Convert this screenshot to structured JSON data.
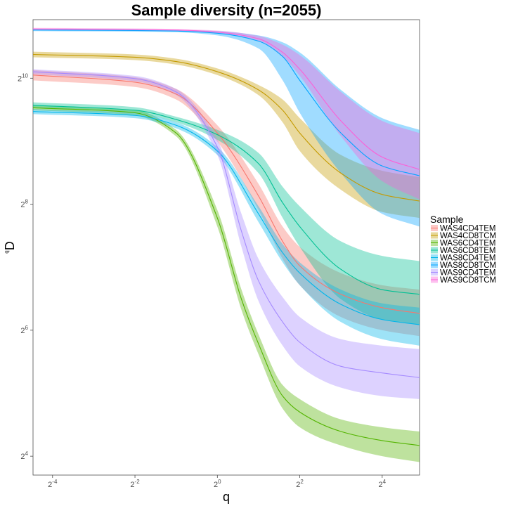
{
  "chart_data": {
    "type": "line",
    "title": "Sample diversity (n=2055)",
    "xlabel": "q",
    "ylabel_base": "D",
    "ylabel_superscript": "q",
    "x_scale": "log2",
    "y_scale": "log2",
    "xlim": [
      0.045,
      30
    ],
    "ylim": [
      13,
      1950
    ],
    "x_ticks": [
      {
        "base": "2",
        "exp": "-4",
        "value": 0.0625
      },
      {
        "base": "2",
        "exp": "-2",
        "value": 0.25
      },
      {
        "base": "2",
        "exp": "0",
        "value": 1
      },
      {
        "base": "2",
        "exp": "2",
        "value": 4
      },
      {
        "base": "2",
        "exp": "4",
        "value": 16
      }
    ],
    "y_ticks": [
      {
        "base": "2",
        "exp": "4",
        "value": 16
      },
      {
        "base": "2",
        "exp": "6",
        "value": 64
      },
      {
        "base": "2",
        "exp": "8",
        "value": 256
      },
      {
        "base": "2",
        "exp": "10",
        "value": 1024
      }
    ],
    "grid": false,
    "legend": {
      "title": "Sample",
      "position": "right"
    },
    "series": [
      {
        "name": "WAS4CD4TEM",
        "color": "#F8766D",
        "x": [
          0.045,
          0.25,
          0.5,
          1,
          2,
          3,
          4,
          8,
          16,
          30
        ],
        "y": [
          1060,
          980,
          860,
          560,
          280,
          170,
          130,
          95,
          82,
          77
        ],
        "y_lower": [
          1000,
          930,
          810,
          510,
          240,
          140,
          105,
          74,
          64,
          60
        ],
        "y_upper": [
          1120,
          1035,
          910,
          610,
          320,
          200,
          160,
          120,
          105,
          100
        ]
      },
      {
        "name": "WAS4CD8TCM",
        "color": "#C49A00",
        "x": [
          0.045,
          0.25,
          0.5,
          1,
          2,
          3,
          4,
          8,
          16,
          30
        ],
        "y": [
          1330,
          1290,
          1230,
          1100,
          900,
          720,
          560,
          360,
          285,
          265
        ],
        "y_lower": [
          1290,
          1250,
          1190,
          1060,
          850,
          630,
          460,
          300,
          235,
          220
        ],
        "y_upper": [
          1370,
          1330,
          1270,
          1140,
          950,
          810,
          660,
          440,
          370,
          345
        ]
      },
      {
        "name": "WAS6CD4TEM",
        "color": "#53B400",
        "x": [
          0.045,
          0.25,
          0.5,
          1,
          1.5,
          2,
          3,
          4,
          8,
          16,
          30
        ],
        "y": [
          740,
          700,
          560,
          220,
          90,
          55,
          31,
          26,
          21,
          19,
          18
        ],
        "y_lower": [
          720,
          680,
          540,
          200,
          80,
          49,
          27,
          22,
          18,
          16,
          15
        ],
        "y_upper": [
          760,
          720,
          580,
          240,
          100,
          61,
          35,
          30,
          24,
          22,
          21
        ]
      },
      {
        "name": "WAS6CD8TEM",
        "color": "#00C094",
        "x": [
          0.045,
          0.25,
          0.5,
          1,
          2,
          3,
          4,
          8,
          16,
          30
        ],
        "y": [
          760,
          720,
          650,
          550,
          400,
          260,
          200,
          125,
          100,
          95
        ],
        "y_lower": [
          735,
          700,
          630,
          520,
          360,
          220,
          160,
          90,
          72,
          68
        ],
        "y_upper": [
          785,
          745,
          670,
          580,
          450,
          310,
          250,
          170,
          145,
          137
        ]
      },
      {
        "name": "WAS8CD4TEM",
        "color": "#00B6EB",
        "x": [
          0.045,
          0.25,
          0.5,
          1,
          2,
          3,
          4,
          8,
          16,
          30
        ],
        "y": [
          710,
          680,
          610,
          460,
          230,
          150,
          120,
          85,
          72,
          68
        ],
        "y_lower": [
          690,
          660,
          590,
          440,
          210,
          135,
          105,
          70,
          58,
          54
        ],
        "y_upper": [
          730,
          700,
          630,
          480,
          250,
          165,
          135,
          100,
          86,
          82
        ]
      },
      {
        "name": "WAS8CD8TCM",
        "color": "#06A4FF",
        "x": [
          0.045,
          0.25,
          0.5,
          1,
          2,
          3,
          4,
          8,
          16,
          30
        ],
        "y": [
          1740,
          1730,
          1720,
          1680,
          1540,
          1300,
          1000,
          560,
          390,
          350
        ],
        "y_lower": [
          1720,
          1710,
          1700,
          1640,
          1420,
          1000,
          700,
          360,
          230,
          200
        ],
        "y_upper": [
          1760,
          1750,
          1740,
          1720,
          1640,
          1520,
          1360,
          900,
          660,
          580
        ]
      },
      {
        "name": "WAS9CD4TEM",
        "color": "#A58AFF",
        "x": [
          0.045,
          0.25,
          0.5,
          1,
          1.5,
          2,
          3,
          4,
          8,
          16,
          30
        ],
        "y": [
          1100,
          1020,
          880,
          480,
          190,
          110,
          70,
          56,
          43,
          40,
          38
        ],
        "y_lower": [
          1070,
          990,
          850,
          440,
          160,
          88,
          54,
          43,
          34,
          31,
          30
        ],
        "y_upper": [
          1130,
          1050,
          910,
          520,
          230,
          140,
          92,
          74,
          58,
          54,
          52
        ]
      },
      {
        "name": "WAS9CD8TCM",
        "color": "#FB61D7",
        "x": [
          0.045,
          0.25,
          0.5,
          1,
          2,
          3,
          4,
          8,
          16,
          30
        ],
        "y": [
          1760,
          1750,
          1740,
          1700,
          1580,
          1360,
          1130,
          640,
          430,
          375
        ],
        "y_lower": [
          1740,
          1730,
          1720,
          1680,
          1540,
          1300,
          1050,
          540,
          330,
          270
        ],
        "y_upper": [
          1780,
          1770,
          1760,
          1730,
          1630,
          1480,
          1320,
          880,
          640,
          560
        ]
      }
    ]
  }
}
